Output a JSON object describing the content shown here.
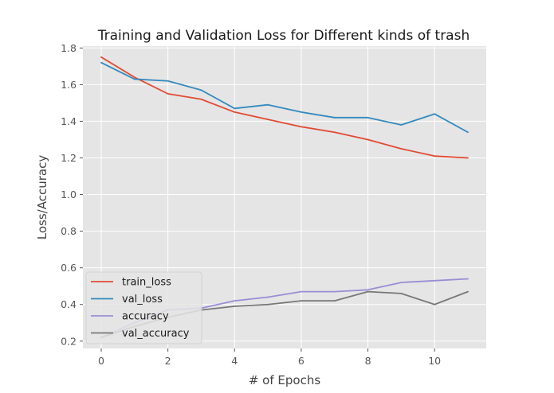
{
  "chart_data": {
    "type": "line",
    "title": "Training and Validation Loss for Different kinds of trash",
    "xlabel": "# of Epochs",
    "ylabel": "Loss/Accuracy",
    "x": [
      0,
      1,
      2,
      3,
      4,
      5,
      6,
      7,
      8,
      9,
      10,
      11
    ],
    "xlim": [
      -0.55,
      11.55
    ],
    "ylim": [
      0.16,
      1.81
    ],
    "xticks": [
      0,
      2,
      4,
      6,
      8,
      10
    ],
    "yticks": [
      0.2,
      0.4,
      0.6,
      0.8,
      1.0,
      1.2,
      1.4,
      1.6,
      1.8
    ],
    "grid": true,
    "legend_position": "lower-left",
    "series": [
      {
        "name": "train_loss",
        "color": "#E24A33",
        "values": [
          1.75,
          1.64,
          1.55,
          1.52,
          1.45,
          1.41,
          1.37,
          1.34,
          1.3,
          1.25,
          1.21,
          1.2
        ]
      },
      {
        "name": "val_loss",
        "color": "#348ABD",
        "values": [
          1.72,
          1.63,
          1.62,
          1.57,
          1.47,
          1.49,
          1.45,
          1.42,
          1.42,
          1.38,
          1.44,
          1.34
        ]
      },
      {
        "name": "accuracy",
        "color": "#988ED5",
        "values": [
          0.22,
          0.3,
          0.37,
          0.38,
          0.42,
          0.44,
          0.47,
          0.47,
          0.48,
          0.52,
          0.53,
          0.54
        ]
      },
      {
        "name": "val_accuracy",
        "color": "#777777",
        "values": [
          0.22,
          0.28,
          0.33,
          0.37,
          0.39,
          0.4,
          0.42,
          0.42,
          0.47,
          0.46,
          0.4,
          0.47
        ]
      }
    ]
  }
}
